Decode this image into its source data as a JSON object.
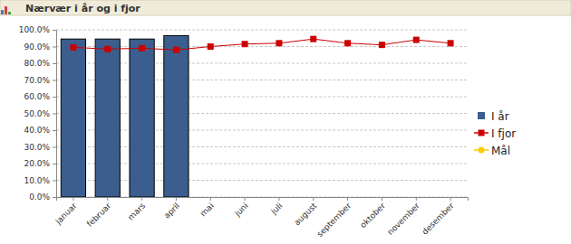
{
  "chart_data": {
    "type": "bar",
    "title": "Nærvær i år og i fjor",
    "categories": [
      "januar",
      "februar",
      "mars",
      "april",
      "mai",
      "juni",
      "juli",
      "august",
      "september",
      "oktober",
      "november",
      "desember"
    ],
    "series": [
      {
        "name": "I år",
        "type": "bar",
        "color": "#3b5e8e",
        "values": [
          94.5,
          94.5,
          94.5,
          96.5,
          null,
          null,
          null,
          null,
          null,
          null,
          null,
          null
        ]
      },
      {
        "name": "I fjor",
        "type": "line",
        "color": "#cc0000",
        "marker": "square",
        "values": [
          89.5,
          88.5,
          89,
          88,
          90,
          91.5,
          92,
          94.5,
          92,
          91,
          94,
          92
        ]
      },
      {
        "name": "Mål",
        "type": "line",
        "color": "#ffcc00",
        "marker": "circle",
        "values": [
          null,
          null,
          null,
          null,
          null,
          null,
          null,
          null,
          null,
          null,
          null,
          null
        ]
      }
    ],
    "ylim": [
      0,
      100
    ],
    "yticks": [
      {
        "value": 0,
        "label": "0.0%"
      },
      {
        "value": 10,
        "label": "10.0%"
      },
      {
        "value": 20,
        "label": "20.0%"
      },
      {
        "value": 30,
        "label": "30.0%"
      },
      {
        "value": 40,
        "label": "40.0%"
      },
      {
        "value": 50,
        "label": "50.0%"
      },
      {
        "value": 60,
        "label": "60.0%"
      },
      {
        "value": 70,
        "label": "70.0%"
      },
      {
        "value": 80,
        "label": "80.0%"
      },
      {
        "value": 90,
        "label": "90.0%"
      },
      {
        "value": 100,
        "label": "100.0%"
      }
    ],
    "grid": true,
    "legend": "right"
  }
}
